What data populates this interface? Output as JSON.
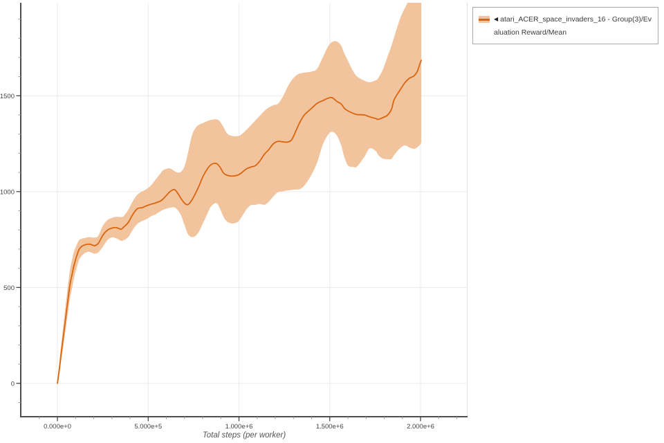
{
  "figure": {
    "x_axis_title": "Total steps (per worker)"
  },
  "legend": {
    "collapse_icon": "◀",
    "entries": [
      {
        "label": "atari_ACER_space_invaders_16 - Group(3)/Evaluation Reward/Mean",
        "line_color": "#d9650f",
        "band_color": "#f2c49e"
      }
    ]
  },
  "colors": {
    "background": "#ffffff",
    "line": "#d9650f",
    "band": "#f2c49e",
    "grid": "#ebebeb",
    "plot_right_edge": "#e0e0e0",
    "axis": "#4d4d4d",
    "major_tick": "#333333",
    "minor_tick": "#999999",
    "tick_label": "#444444"
  },
  "chart_data": {
    "type": "line",
    "title": "",
    "xlabel": "Total steps (per worker)",
    "ylabel": "",
    "grid": true,
    "legend_position": "top-right",
    "xlim": [
      -202000,
      2259000
    ],
    "ylim": [
      -174,
      1985
    ],
    "x_ticks": [
      {
        "value": 0,
        "label": "0.000e+0"
      },
      {
        "value": 500000,
        "label": "5.000e+5"
      },
      {
        "value": 1000000,
        "label": "1.000e+6"
      },
      {
        "value": 1500000,
        "label": "1.500e+6"
      },
      {
        "value": 2000000,
        "label": "2.000e+6"
      }
    ],
    "y_ticks": [
      {
        "value": 0,
        "label": "0"
      },
      {
        "value": 500,
        "label": "500"
      },
      {
        "value": 1000,
        "label": "1000"
      },
      {
        "value": 1500,
        "label": "1500"
      }
    ],
    "x_minor_step": 100000,
    "y_minor_step": 100,
    "series": [
      {
        "name": "atari_ACER_space_invaders_16 - Group(3)/Evaluation Reward/Mean",
        "color": "#d9650f",
        "band_color": "#f2c49e",
        "points_format": [
          "steps",
          "mean",
          "band_lower",
          "band_upper"
        ],
        "points": [
          [
            0,
            0,
            -12,
            14
          ],
          [
            10000,
            70,
            42,
            103
          ],
          [
            20000,
            150,
            112,
            196
          ],
          [
            30000,
            225,
            178,
            282
          ],
          [
            40000,
            300,
            246,
            366
          ],
          [
            50000,
            375,
            312,
            448
          ],
          [
            60000,
            450,
            382,
            527
          ],
          [
            70000,
            520,
            448,
            598
          ],
          [
            80000,
            565,
            492,
            643
          ],
          [
            90000,
            610,
            541,
            684
          ],
          [
            100000,
            645,
            582,
            709
          ],
          [
            110000,
            675,
            616,
            731
          ],
          [
            120000,
            700,
            646,
            748
          ],
          [
            135000,
            715,
            666,
            755
          ],
          [
            150000,
            722,
            679,
            758
          ],
          [
            170000,
            726,
            686,
            762
          ],
          [
            185000,
            724,
            683,
            762
          ],
          [
            205000,
            718,
            676,
            760
          ],
          [
            225000,
            730,
            683,
            769
          ],
          [
            250000,
            772,
            712,
            822
          ],
          [
            275000,
            799,
            746,
            851
          ],
          [
            300000,
            810,
            761,
            863
          ],
          [
            325000,
            812,
            756,
            869
          ],
          [
            350000,
            804,
            744,
            867
          ],
          [
            365000,
            815,
            746,
            872
          ],
          [
            390000,
            839,
            763,
            905
          ],
          [
            415000,
            881,
            801,
            950
          ],
          [
            440000,
            911,
            831,
            984
          ],
          [
            465000,
            916,
            846,
            1000
          ],
          [
            490000,
            926,
            856,
            1013
          ],
          [
            515000,
            934,
            871,
            1032
          ],
          [
            540000,
            941,
            881,
            1062
          ],
          [
            565000,
            950,
            896,
            1092
          ],
          [
            580000,
            960,
            904,
            1110
          ],
          [
            600000,
            980,
            911,
            1119
          ],
          [
            620000,
            1000,
            916,
            1121
          ],
          [
            643000,
            1011,
            918,
            1108
          ],
          [
            660000,
            995,
            906,
            1100
          ],
          [
            680000,
            965,
            878,
            1103
          ],
          [
            700000,
            940,
            826,
            1132
          ],
          [
            719000,
            932,
            778,
            1202
          ],
          [
            740000,
            955,
            763,
            1290
          ],
          [
            760000,
            990,
            769,
            1331
          ],
          [
            780000,
            1030,
            792,
            1349
          ],
          [
            800000,
            1075,
            832,
            1357
          ],
          [
            820000,
            1110,
            872,
            1366
          ],
          [
            845000,
            1140,
            921,
            1374
          ],
          [
            875000,
            1147,
            940,
            1377
          ],
          [
            895000,
            1128,
            912,
            1366
          ],
          [
            915000,
            1097,
            868,
            1336
          ],
          [
            935000,
            1085,
            843,
            1303
          ],
          [
            960000,
            1081,
            834,
            1291
          ],
          [
            990000,
            1085,
            840,
            1289
          ],
          [
            1010000,
            1095,
            861,
            1296
          ],
          [
            1040000,
            1118,
            906,
            1321
          ],
          [
            1065000,
            1128,
            929,
            1346
          ],
          [
            1090000,
            1135,
            931,
            1371
          ],
          [
            1115000,
            1160,
            936,
            1396
          ],
          [
            1140000,
            1195,
            931,
            1421
          ],
          [
            1163000,
            1218,
            946,
            1438
          ],
          [
            1190000,
            1250,
            976,
            1451
          ],
          [
            1214000,
            1262,
            996,
            1458
          ],
          [
            1240000,
            1260,
            1001,
            1492
          ],
          [
            1265000,
            1258,
            1006,
            1541
          ],
          [
            1290000,
            1270,
            1009,
            1581
          ],
          [
            1315000,
            1320,
            1011,
            1606
          ],
          [
            1335000,
            1361,
            1013,
            1616
          ],
          [
            1360000,
            1400,
            1031,
            1621
          ],
          [
            1398000,
            1433,
            1086,
            1626
          ],
          [
            1430000,
            1460,
            1151,
            1641
          ],
          [
            1462000,
            1475,
            1246,
            1701
          ],
          [
            1490000,
            1487,
            1296,
            1756
          ],
          [
            1513000,
            1490,
            1313,
            1781
          ],
          [
            1540000,
            1470,
            1291,
            1783
          ],
          [
            1563000,
            1457,
            1241,
            1761
          ],
          [
            1580000,
            1435,
            1181,
            1721
          ],
          [
            1601000,
            1421,
            1136,
            1681
          ],
          [
            1627000,
            1409,
            1129,
            1631
          ],
          [
            1650000,
            1402,
            1131,
            1601
          ],
          [
            1690000,
            1400,
            1181,
            1579
          ],
          [
            1720000,
            1390,
            1226,
            1571
          ],
          [
            1754000,
            1381,
            1211,
            1581
          ],
          [
            1767000,
            1377,
            1191,
            1593
          ],
          [
            1790000,
            1385,
            1173,
            1631
          ],
          [
            1817000,
            1398,
            1169,
            1701
          ],
          [
            1840000,
            1430,
            1171,
            1761
          ],
          [
            1855000,
            1480,
            1191,
            1808
          ],
          [
            1887000,
            1530,
            1226,
            1901
          ],
          [
            1913000,
            1567,
            1241,
            1956
          ],
          [
            1938000,
            1591,
            1231,
            1999
          ],
          [
            1963000,
            1603,
            1223,
            2010
          ],
          [
            1982000,
            1627,
            1231,
            2015
          ],
          [
            1995000,
            1663,
            1243,
            2020
          ],
          [
            2004000,
            1685,
            1254,
            2022
          ]
        ]
      }
    ]
  }
}
